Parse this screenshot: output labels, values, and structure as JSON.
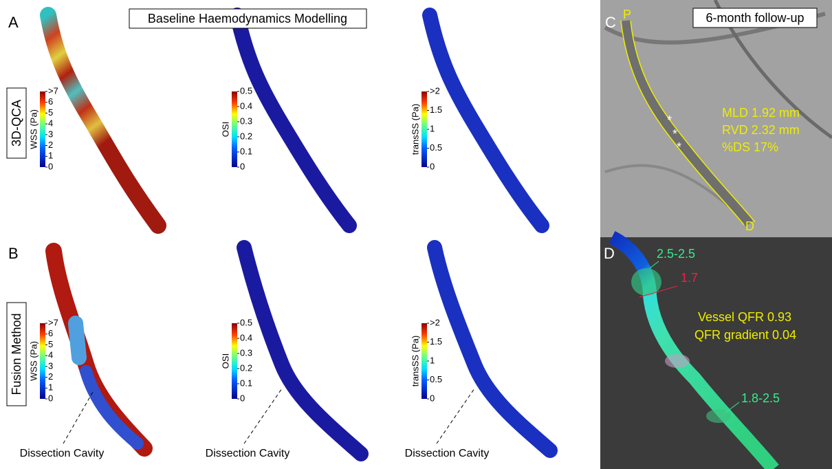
{
  "title": "Baseline Haemodynamics Modelling",
  "panels": {
    "A": {
      "letter": "A",
      "row_label": "3D-QCA",
      "colorbars": [
        {
          "label": "WSS (Pa)",
          "ticks": [
            ">7",
            "6",
            "5",
            "4",
            "3",
            "2",
            "1",
            "0"
          ]
        },
        {
          "label": "OSI",
          "ticks": [
            "0.5",
            "0.4",
            "0.3",
            "0.2",
            "0.1",
            "0"
          ]
        },
        {
          "label": "transSS (Pa)",
          "ticks": [
            ">2",
            "1.5",
            "1",
            "0.5",
            "0"
          ]
        }
      ]
    },
    "B": {
      "letter": "B",
      "row_label": "Fusion Method",
      "colorbars": [
        {
          "label": "WSS (Pa)",
          "ticks": [
            ">7",
            "6",
            "5",
            "4",
            "3",
            "2",
            "1",
            "0"
          ]
        },
        {
          "label": "OSI",
          "ticks": [
            "0.5",
            "0.4",
            "0.3",
            "0.2",
            "0.1",
            "0"
          ]
        },
        {
          "label": "transSS (Pa)",
          "ticks": [
            ">2",
            "1.5",
            "1",
            "0.5",
            "0"
          ]
        }
      ],
      "annotations": [
        "Dissection Cavity",
        "Dissection Cavity",
        "Dissection Cavity"
      ]
    },
    "C": {
      "letter": "C",
      "title": "6-month follow-up",
      "proximal": "P",
      "distal": "D",
      "markers": [
        "*",
        "*",
        "*"
      ],
      "measurements": [
        "MLD 1.92 mm",
        "RVD 2.32 mm",
        "%DS 17%"
      ]
    },
    "D": {
      "letter": "D",
      "labels": [
        "2.5-2.5",
        "1.7",
        "Vessel QFR 0.93",
        "QFR gradient 0.04",
        "1.8-2.5"
      ]
    }
  }
}
